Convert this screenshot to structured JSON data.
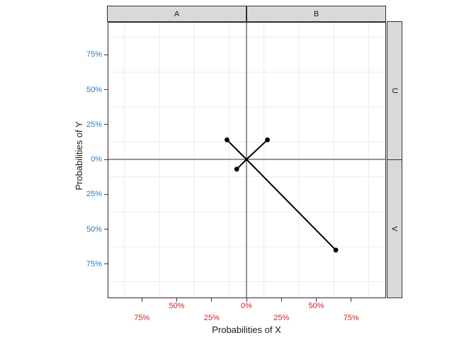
{
  "figure": {
    "background": "#FFFFFF",
    "strip_fill": "#D9D9D9",
    "strip_border": "#333333",
    "panel_border_color": "#2B2B2B",
    "grid_color": "#EBEBEB",
    "tick_color": "#333333"
  },
  "chart_data": {
    "type": "scatter",
    "title": "",
    "xlabel": "Probabilities of X",
    "ylabel": "Probabilities of Y",
    "xlim": [
      -100,
      100
    ],
    "ylim": [
      -100,
      100
    ],
    "grid": "minor-only",
    "legend": "none",
    "facets": {
      "columns": [
        "A",
        "B"
      ],
      "rows": [
        "U",
        "V"
      ]
    },
    "x_ticks": {
      "values": [
        -75,
        -50,
        -25,
        0,
        25,
        50,
        75
      ],
      "labels": [
        "75%",
        "50%",
        "25%",
        "0%",
        "25%",
        "50%",
        "75%"
      ],
      "stagger_row": [
        1,
        0,
        1,
        0,
        1,
        0,
        1
      ],
      "color": "#CC2626"
    },
    "y_ticks": {
      "values": [
        75,
        50,
        25,
        0,
        -25,
        -50,
        -75
      ],
      "labels": [
        "75%",
        "50%",
        "25%",
        "0%",
        "25%",
        "50%",
        "75%"
      ],
      "color": "#3377B4"
    },
    "minor_gridlines": [
      -87.5,
      -62.5,
      -37.5,
      -12.5,
      12.5,
      37.5,
      62.5,
      87.5
    ],
    "zero_lines": true,
    "points": [
      {
        "x": -14,
        "y": 14
      },
      {
        "x": 15,
        "y": 14
      },
      {
        "x": -7,
        "y": -7
      },
      {
        "x": 64,
        "y": -65
      }
    ],
    "segments_from_origin": true,
    "point_color": "#000000",
    "line_color": "#000000"
  }
}
